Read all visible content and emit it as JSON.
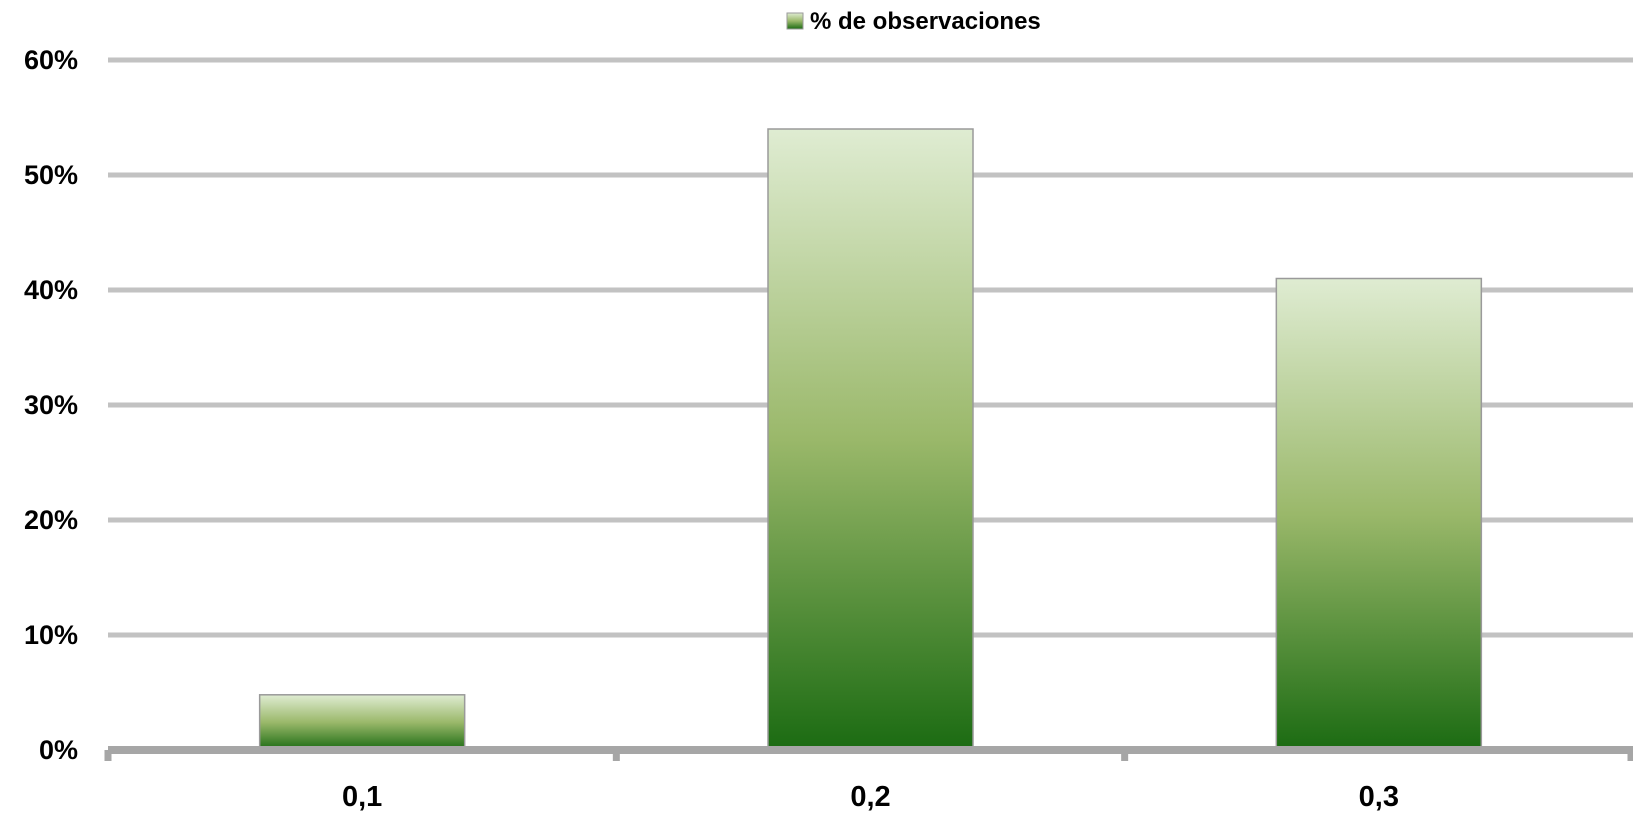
{
  "chart_data": {
    "type": "bar",
    "title": "",
    "xlabel": "",
    "ylabel": "",
    "categories": [
      "0,1",
      "0,2",
      "0,3"
    ],
    "series": [
      {
        "name": "% de observaciones",
        "values": [
          4.8,
          54,
          41
        ]
      }
    ],
    "y_ticks": [
      "0%",
      "10%",
      "20%",
      "30%",
      "40%",
      "50%",
      "60%"
    ],
    "ylim": [
      0,
      60
    ],
    "grid": true,
    "legend_position": "top-center",
    "colors": {
      "bar_top": "#dfecd2",
      "bar_mid": "#9ab86a",
      "bar_bottom": "#1b6b12",
      "bar_stroke": "#9a9a9a",
      "gridline": "#c2c2c2",
      "axis": "#a6a6a6"
    }
  }
}
